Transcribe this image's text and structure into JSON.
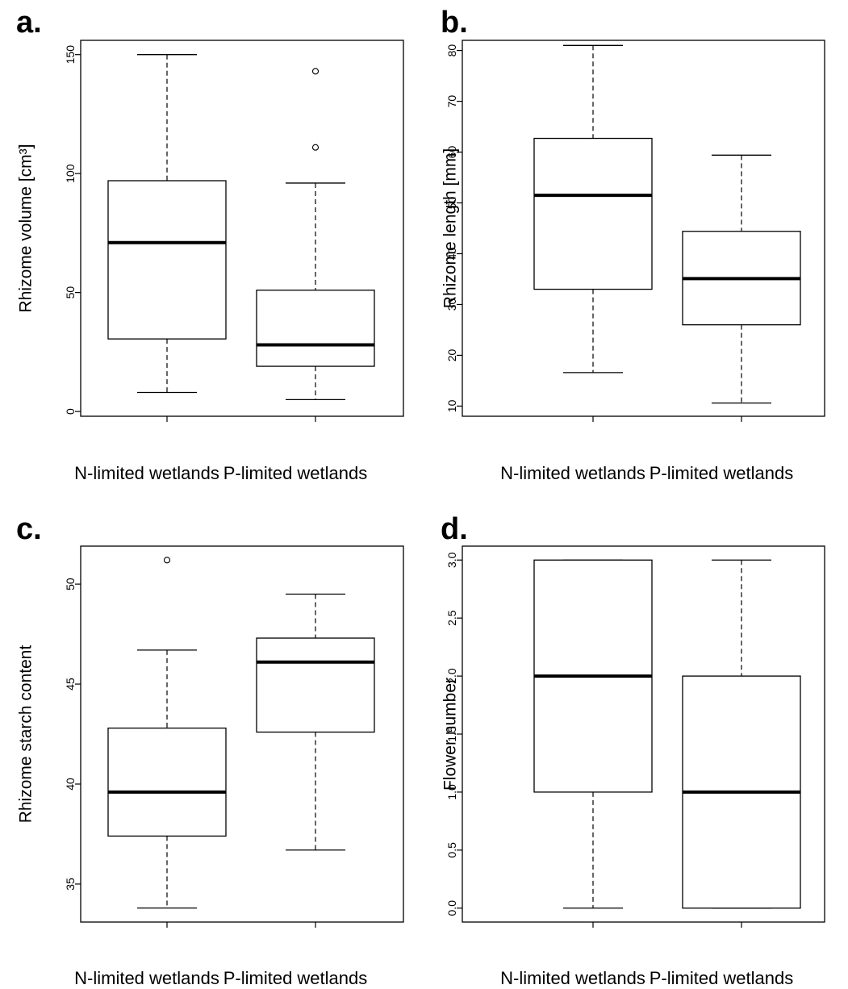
{
  "chart_data": [
    {
      "type": "boxplot",
      "panel_label": "a.",
      "ylabel": "Rhizome volume [cm³]",
      "ylim": [
        -2,
        156
      ],
      "yticks": [
        0,
        50,
        100,
        150
      ],
      "categories": [
        "N-limited wetlands",
        "P-limited wetlands"
      ],
      "boxes": [
        {
          "whisker_low": 8,
          "q1": 30.5,
          "median": 71,
          "q3": 97,
          "whisker_high": 150,
          "outliers": []
        },
        {
          "whisker_low": 5,
          "q1": 19,
          "median": 28,
          "q3": 51,
          "whisker_high": 96,
          "outliers": [
            111,
            143
          ]
        }
      ]
    },
    {
      "type": "boxplot",
      "panel_label": "b.",
      "ylabel": "Rhizome length [mm]",
      "ylim": [
        8,
        82
      ],
      "yticks": [
        10,
        20,
        30,
        40,
        50,
        60,
        70,
        80
      ],
      "categories": [
        "N-limited wetlands",
        "P-limited wetlands"
      ],
      "boxes": [
        {
          "whisker_low": 16.6,
          "q1": 33,
          "median": 51.5,
          "q3": 62.7,
          "whisker_high": 81,
          "outliers": []
        },
        {
          "whisker_low": 10.6,
          "q1": 26,
          "median": 35.1,
          "q3": 44.4,
          "whisker_high": 59.4,
          "outliers": []
        }
      ]
    },
    {
      "type": "boxplot",
      "panel_label": "c.",
      "ylabel": "Rhizome starch content",
      "ylim": [
        33.1,
        51.9
      ],
      "yticks": [
        35,
        40,
        45,
        50
      ],
      "categories": [
        "N-limited wetlands",
        "P-limited wetlands"
      ],
      "boxes": [
        {
          "whisker_low": 33.8,
          "q1": 37.4,
          "median": 39.6,
          "q3": 42.8,
          "whisker_high": 46.7,
          "outliers": [
            51.2
          ]
        },
        {
          "whisker_low": 36.7,
          "q1": 42.6,
          "median": 46.1,
          "q3": 47.3,
          "whisker_high": 49.5,
          "outliers": []
        }
      ]
    },
    {
      "type": "boxplot",
      "panel_label": "d.",
      "ylabel": "Flower number",
      "ylim": [
        -0.12,
        3.12
      ],
      "yticks": [
        "0.0",
        "0.5",
        "1.0",
        "1.5",
        "2.0",
        "2.5",
        "3.0"
      ],
      "categories": [
        "N-limited wetlands",
        "P-limited wetlands"
      ],
      "boxes": [
        {
          "whisker_low": 0,
          "q1": 1,
          "median": 2,
          "q3": 3,
          "whisker_high": 3,
          "outliers": []
        },
        {
          "whisker_low": 0,
          "q1": 0,
          "median": 1,
          "q3": 2,
          "whisker_high": 3,
          "outliers": []
        }
      ]
    }
  ]
}
